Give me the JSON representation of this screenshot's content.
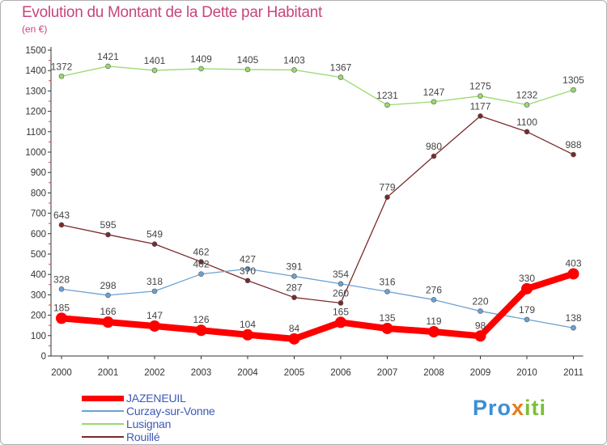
{
  "title": "Evolution du Montant de la Dette par Habitant",
  "unit_label": "(en €)",
  "logo": {
    "text_1": "Pro",
    "text_2": "x",
    "text_3": "iti"
  },
  "chart_data": {
    "type": "line",
    "title": "Evolution du Montant de la Dette par Habitant",
    "ylabel": "(en €)",
    "xlabel": "",
    "ylim": [
      0,
      1500
    ],
    "yticks": [
      0,
      100,
      200,
      300,
      400,
      500,
      600,
      700,
      800,
      900,
      1000,
      1100,
      1200,
      1300,
      1400,
      1500
    ],
    "categories": [
      "2000",
      "2001",
      "2002",
      "2003",
      "2004",
      "2005",
      "2006",
      "2007",
      "2008",
      "2009",
      "2010",
      "2011"
    ],
    "grid": false,
    "legend_position": "bottom-left",
    "series": [
      {
        "name": "JAZENEUIL",
        "color": "#ff0000",
        "values": [
          185,
          166,
          147,
          126,
          104,
          84,
          165,
          135,
          119,
          98,
          330,
          403
        ]
      },
      {
        "name": "Curzay-sur-Vonne",
        "color": "#6aa2d4",
        "values": [
          328,
          298,
          318,
          402,
          427,
          391,
          354,
          316,
          276,
          220,
          179,
          138
        ]
      },
      {
        "name": "Lusignan",
        "color": "#99d96e",
        "values": [
          1372,
          1421,
          1401,
          1409,
          1405,
          1403,
          1367,
          1231,
          1247,
          1275,
          1232,
          1305
        ]
      },
      {
        "name": "Rouillé",
        "color": "#7a2a2a",
        "values": [
          643,
          595,
          549,
          462,
          370,
          287,
          260,
          779,
          980,
          1177,
          1100,
          988
        ]
      }
    ]
  }
}
